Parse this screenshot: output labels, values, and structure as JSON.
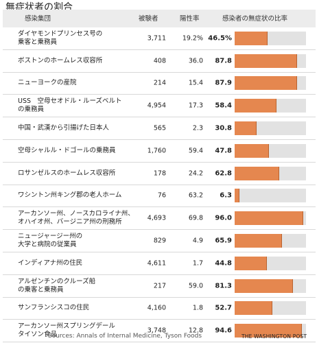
{
  "header": {
    "title": "無症状者の割合",
    "col_group": "感染集団",
    "col_n": "被験者",
    "col_rate": "陽性率",
    "col_ratio": "感染者の無症状の比率"
  },
  "rows": [
    {
      "group": "ダイヤモンドプリンセス号の\n乗客と乗務員",
      "n": "3,711",
      "rate": "19.2%",
      "pct_label": "46.5%",
      "pct": 46.5
    },
    {
      "group": "ボストンのホームレス収容所",
      "n": "408",
      "rate": "36.0",
      "pct_label": "87.8",
      "pct": 87.8
    },
    {
      "group": "ニューヨークの産院",
      "n": "214",
      "rate": "15.4",
      "pct_label": "87.9",
      "pct": 87.9
    },
    {
      "group": "USS　空母セオドル・ルーズベルト\nの乗務員",
      "n": "4,954",
      "rate": "17.3",
      "pct_label": "58.4",
      "pct": 58.4
    },
    {
      "group": "中国・武漢から引揚げた日本人",
      "n": "565",
      "rate": "2.3",
      "pct_label": "30.8",
      "pct": 30.8
    },
    {
      "group": "空母シャルル・ドゴールの乗務員",
      "n": "1,760",
      "rate": "59.4",
      "pct_label": "47.8",
      "pct": 47.8
    },
    {
      "group": "ロサンゼルスのホームレス収容所",
      "n": "178",
      "rate": "24.2",
      "pct_label": "62.8",
      "pct": 62.8
    },
    {
      "group": "ワシントン州キング郡の老人ホーム",
      "n": "76",
      "rate": "63.2",
      "pct_label": "6.3",
      "pct": 6.3
    },
    {
      "group": "アーカンソー州、ノースカロライナ州、\nオハイオ州、バージニア州の刑務所",
      "n": "4,693",
      "rate": "69.8",
      "pct_label": "96.0",
      "pct": 96.0
    },
    {
      "group": "ニュージャージー州の\n大学と病院の従業員",
      "n": "829",
      "rate": "4.9",
      "pct_label": "65.9",
      "pct": 65.9
    },
    {
      "group": "インディアナ州の住民",
      "n": "4,611",
      "rate": "1.7",
      "pct_label": "44.8",
      "pct": 44.8
    },
    {
      "group": "アルゼンチンのクルーズ船\nの乗客と乗務員",
      "n": "217",
      "rate": "59.0",
      "pct_label": "81.3",
      "pct": 81.3
    },
    {
      "group": "サンフランシスコの住民",
      "n": "4,160",
      "rate": "1.8",
      "pct_label": "52.7",
      "pct": 52.7
    },
    {
      "group": "アーカンソー州スプリングデール\nタイソン食品",
      "n": "3,748",
      "rate": "12.8",
      "pct_label": "94.6",
      "pct": 94.6
    }
  ],
  "footer": {
    "sources": "Sources: Annals of Internal Medicine, Tyson Foods",
    "credit": "THE WASHINGTON POST"
  },
  "colors": {
    "bar": "#e5874f",
    "track": "#e2e2e2",
    "header_bg": "#ececec"
  },
  "chart_data": {
    "type": "bar",
    "title": "無症状者の割合",
    "categories": [
      "ダイヤモンドプリンセス号の乗客と乗務員",
      "ボストンのホームレス収容所",
      "ニューヨークの産院",
      "USS　空母セオドル・ルーズベルトの乗務員",
      "中国・武漢から引揚げた日本人",
      "空母シャルル・ドゴールの乗務員",
      "ロサンゼルスのホームレス収容所",
      "ワシントン州キング郡の老人ホーム",
      "アーカンソー州、ノースカロライナ州、オハイオ州、バージニア州の刑務所",
      "ニュージャージー州の大学と病院の従業員",
      "インディアナ州の住民",
      "アルゼンチンのクルーズ船の乗客と乗務員",
      "サンフランシスコの住民",
      "アーカンソー州スプリングデールタイソン食品"
    ],
    "values": [
      46.5,
      87.8,
      87.9,
      58.4,
      30.8,
      47.8,
      62.8,
      6.3,
      96.0,
      65.9,
      44.8,
      81.3,
      52.7,
      94.6
    ],
    "series": [
      {
        "name": "被験者",
        "values": [
          3711,
          408,
          214,
          4954,
          565,
          1760,
          178,
          76,
          4693,
          829,
          4611,
          217,
          4160,
          3748
        ]
      },
      {
        "name": "陽性率",
        "values": [
          19.2,
          36.0,
          15.4,
          17.3,
          2.3,
          59.4,
          24.2,
          63.2,
          69.8,
          4.9,
          1.7,
          59.0,
          1.8,
          12.8
        ]
      },
      {
        "name": "感染者の無症状の比率",
        "values": [
          46.5,
          87.8,
          87.9,
          58.4,
          30.8,
          47.8,
          62.8,
          6.3,
          96.0,
          65.9,
          44.8,
          81.3,
          52.7,
          94.6
        ]
      }
    ],
    "xlim": [
      0,
      100
    ],
    "orientation": "horizontal"
  }
}
